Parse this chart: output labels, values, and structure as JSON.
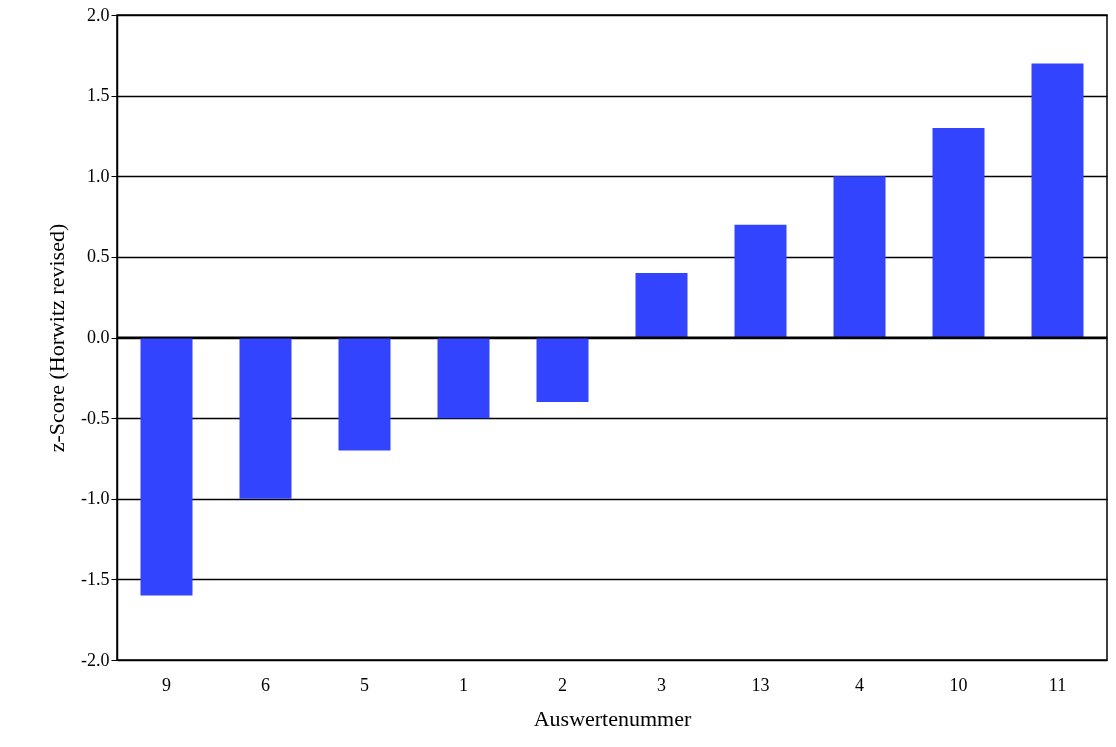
{
  "chart_data": {
    "type": "bar",
    "xlabel": "Auswertenummer",
    "ylabel": "z-Score (Horwitz revised)",
    "categories": [
      "9",
      "6",
      "5",
      "1",
      "2",
      "3",
      "13",
      "4",
      "10",
      "11"
    ],
    "values": [
      -1.6,
      -1.0,
      -0.7,
      -0.5,
      -0.4,
      0.4,
      0.7,
      1.0,
      1.3,
      1.7
    ],
    "color": "#3344ff",
    "ylim": [
      -2,
      2
    ],
    "yticks": [
      {
        "value": -2,
        "label": "-2.0"
      },
      {
        "value": -1.5,
        "label": "-1.5"
      },
      {
        "value": -1,
        "label": "-1.0"
      },
      {
        "value": -0.5,
        "label": "-0.5"
      },
      {
        "value": 0,
        "label": "0.0"
      },
      {
        "value": 0.5,
        "label": "0.5"
      },
      {
        "value": 1,
        "label": "1.0"
      },
      {
        "value": 1.5,
        "label": "1.5"
      },
      {
        "value": 2,
        "label": "2.0"
      }
    ],
    "grid": "y"
  }
}
